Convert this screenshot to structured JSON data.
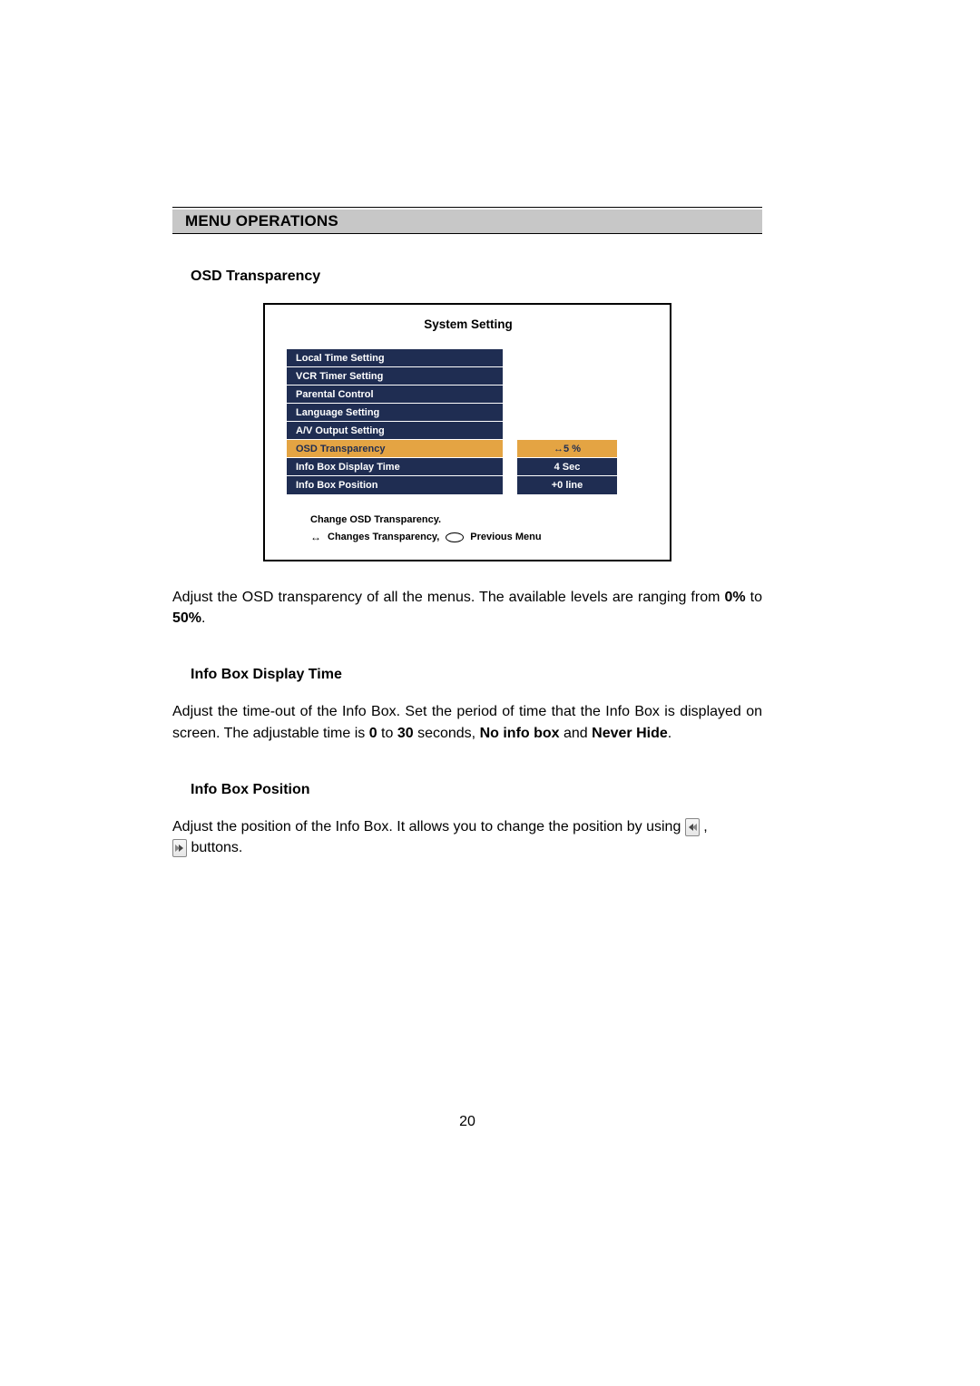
{
  "section_bar": "MENU OPERATIONS",
  "subheadings": {
    "osd": "OSD Transparency",
    "infobox_time": "Info Box Display Time",
    "infobox_pos": "Info Box Position"
  },
  "osd_panel": {
    "title": "System Setting",
    "bg_color": "#1f2d52",
    "selected_bg": "#e4a443",
    "text_color": "#ffffff",
    "selected_text_color": "#1f2d52",
    "rows": [
      {
        "label": "Local Time Setting",
        "value": ""
      },
      {
        "label": "VCR Timer Setting",
        "value": ""
      },
      {
        "label": "Parental Control",
        "value": ""
      },
      {
        "label": "Language Setting",
        "value": ""
      },
      {
        "label": "A/V Output Setting",
        "value": ""
      },
      {
        "label": "OSD Transparency",
        "value": "5 %",
        "selected": true,
        "value_prefix_arrows": true
      },
      {
        "label": "Info Box Display Time",
        "value": "4 Sec"
      },
      {
        "label": "Info Box Position",
        "value": "+0 line"
      }
    ],
    "hint_line1": "Change OSD Transparency.",
    "hint_line2_pre": "Changes Transparency,",
    "hint_line2_post": "Previous Menu"
  },
  "paragraphs": {
    "osd_p_prefix": "Adjust the OSD transparency of all the menus. The available levels are ranging from ",
    "osd_p_bold1": "0%",
    "osd_p_mid": " to ",
    "osd_p_bold2": "50%",
    "osd_p_suffix": ".",
    "infotime_p_prefix": "Adjust the time-out of the Info Box. Set the period of time that the Info Box is displayed on screen. The adjustable time is ",
    "infotime_b1": "0",
    "infotime_mid1": " to ",
    "infotime_b2": "30",
    "infotime_mid2": " seconds, ",
    "infotime_b3": "No info box",
    "infotime_mid3": " and ",
    "infotime_b4": "Never Hide",
    "infotime_suffix": ".",
    "infopos_prefix": "Adjust the position of the Info Box. It allows you to change the position by using ",
    "infopos_suffix": " , ",
    "infopos_tail": " buttons."
  },
  "page_number": "20"
}
